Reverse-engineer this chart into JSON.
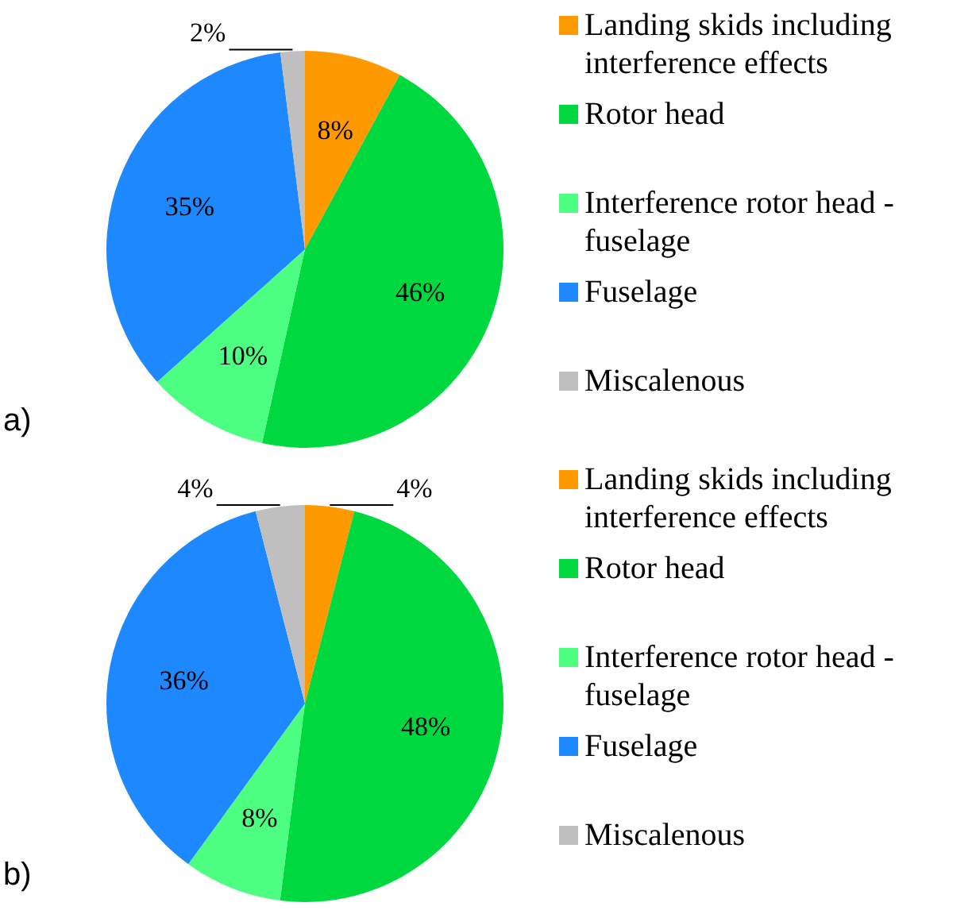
{
  "chart_data": [
    {
      "type": "pie",
      "annotations": [
        "a)"
      ],
      "legend": "right",
      "value_labels": [
        "8%",
        "46%",
        "10%",
        "35%",
        "2%"
      ],
      "categories": [
        "Landing skids including interference effects",
        "Rotor head",
        "Interference rotor head - fuselage",
        "Fuselage",
        "Miscalenous"
      ],
      "values": [
        8,
        46,
        10,
        35,
        2
      ],
      "colors": [
        "#ff9900",
        "#00d840",
        "#4dff80",
        "#1e88ff",
        "#bfbfbf"
      ]
    },
    {
      "type": "pie",
      "annotations": [
        "b)"
      ],
      "legend": "right",
      "value_labels": [
        "4%",
        "48%",
        "8%",
        "36%",
        "4%"
      ],
      "categories": [
        "Landing skids including interference effects",
        "Rotor head",
        "Interference rotor head - fuselage",
        "Fuselage",
        "Miscalenous"
      ],
      "values": [
        4,
        48,
        8,
        36,
        4
      ],
      "colors": [
        "#ff9900",
        "#00d840",
        "#4dff80",
        "#1e88ff",
        "#bfbfbf"
      ]
    }
  ]
}
